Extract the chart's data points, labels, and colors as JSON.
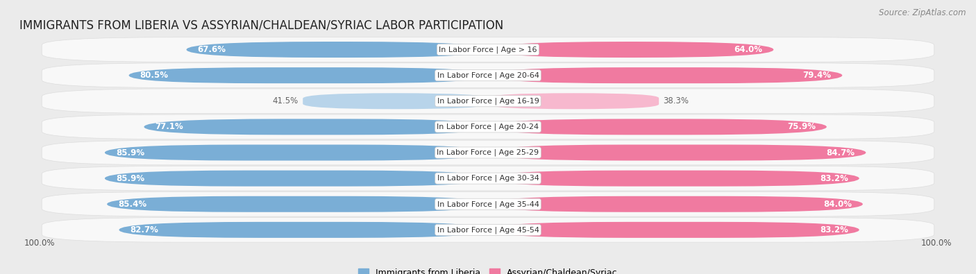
{
  "title": "IMMIGRANTS FROM LIBERIA VS ASSYRIAN/CHALDEAN/SYRIAC LABOR PARTICIPATION",
  "source": "Source: ZipAtlas.com",
  "categories": [
    "In Labor Force | Age > 16",
    "In Labor Force | Age 20-64",
    "In Labor Force | Age 16-19",
    "In Labor Force | Age 20-24",
    "In Labor Force | Age 25-29",
    "In Labor Force | Age 30-34",
    "In Labor Force | Age 35-44",
    "In Labor Force | Age 45-54"
  ],
  "liberia_values": [
    67.6,
    80.5,
    41.5,
    77.1,
    85.9,
    85.9,
    85.4,
    82.7
  ],
  "assyrian_values": [
    64.0,
    79.4,
    38.3,
    75.9,
    84.7,
    83.2,
    84.0,
    83.2
  ],
  "liberia_color": "#7aaed6",
  "liberia_color_light": "#b8d4ea",
  "assyrian_color": "#f07aa0",
  "assyrian_color_light": "#f7b8ce",
  "background_color": "#ebebeb",
  "row_bg_color": "#f8f8f8",
  "row_border_color": "#dddddd",
  "label_color_white": "#ffffff",
  "label_color_dark": "#666666",
  "footer_label": "100.0%",
  "title_fontsize": 12,
  "source_fontsize": 8.5,
  "bar_label_fontsize": 8.5,
  "category_fontsize": 8,
  "legend_fontsize": 9,
  "footer_fontsize": 8.5
}
